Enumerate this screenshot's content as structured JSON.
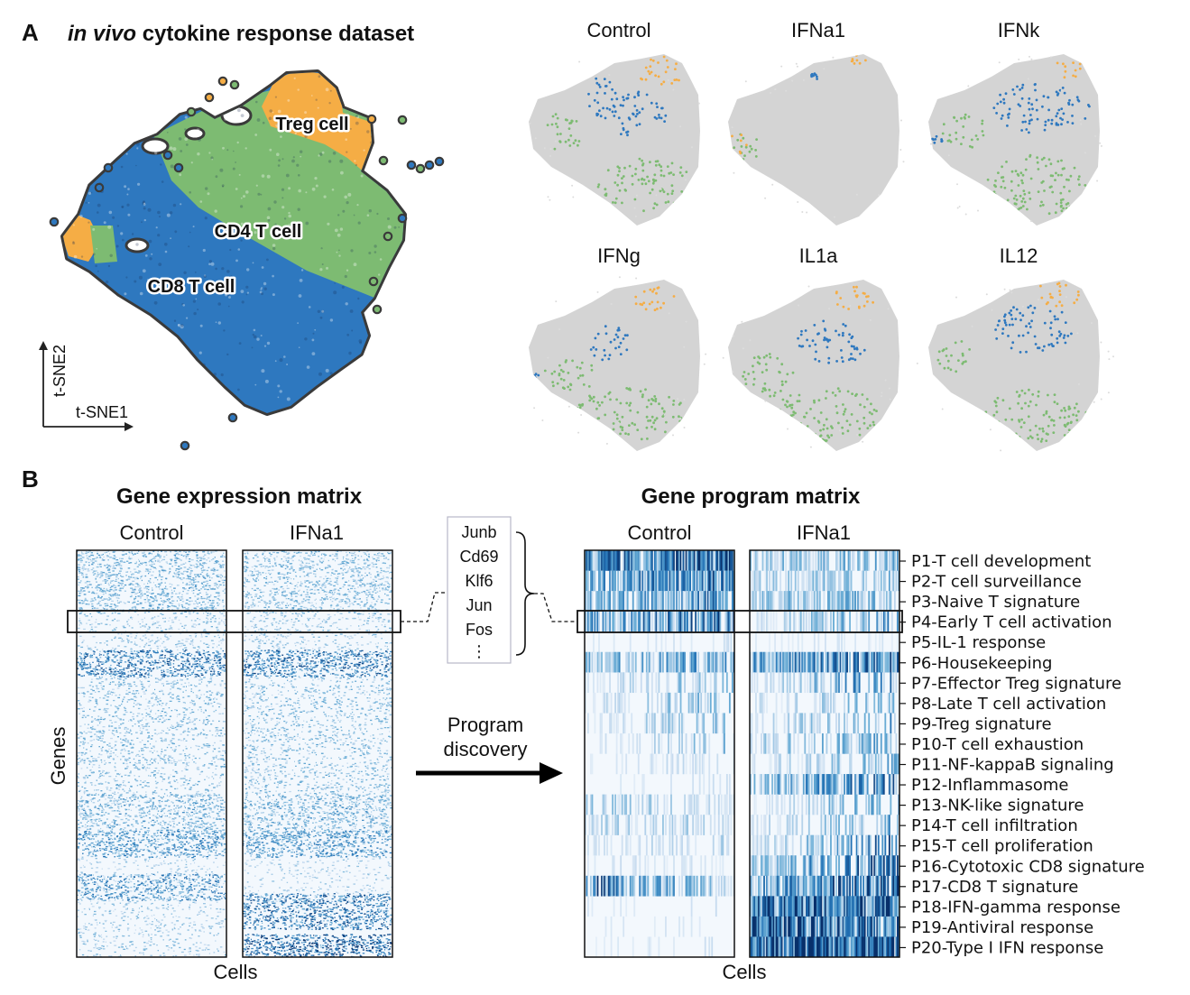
{
  "panel_a": {
    "letter": "A",
    "title_italic": "in vivo",
    "title_rest": " cytokine response dataset",
    "cell_types": [
      {
        "name": "Treg cell",
        "color": "#f5ad45"
      },
      {
        "name": "CD4 T cell",
        "color": "#7dbb72"
      },
      {
        "name": "CD8 T cell",
        "color": "#2e78bf"
      }
    ],
    "axis_x": "t-SNE1",
    "axis_y": "t-SNE2",
    "conditions": [
      "Control",
      "IFNa1",
      "IFNk",
      "IFNg",
      "IL1a",
      "IL12"
    ]
  },
  "panel_b": {
    "letter": "B",
    "left_title": "Gene expression matrix",
    "right_title": "Gene program matrix",
    "left_conditions": [
      "Control",
      "IFNa1"
    ],
    "right_conditions": [
      "Control",
      "IFNa1"
    ],
    "genes_label": "Genes",
    "cells_label": "Cells",
    "gene_list": [
      "Junb",
      "Cd69",
      "Klf6",
      "Jun",
      "Fos",
      "⋮"
    ],
    "arrow_label_line1": "Program",
    "arrow_label_line2": "discovery",
    "programs": [
      "P1-T cell development",
      "P2-T cell surveillance",
      "P3-Naive T signature",
      "P4-Early T cell activation",
      "P5-IL-1 response",
      "P6-Housekeeping",
      "P7-Effector Treg signature",
      "P8-Late T cell activation",
      "P9-Treg signature",
      "P10-T cell exhaustion",
      "P11-NF-kappaB signaling",
      "P12-Inflammasome",
      "P13-NK-like signature",
      "P14-T cell infiltration",
      "P15-T cell proliferation",
      "P16-Cytotoxic CD8 signature",
      "P17-CD8 T signature",
      "P18-IFN-gamma response",
      "P19-Antiviral response",
      "P20-Type I IFN response"
    ]
  },
  "colors": {
    "treg": "#f5ad45",
    "cd4": "#7dbb72",
    "cd8": "#2e78bf",
    "grey": "#d4d4d4",
    "heat_dark": "#08306b",
    "heat_light": "#f3f8fd"
  }
}
